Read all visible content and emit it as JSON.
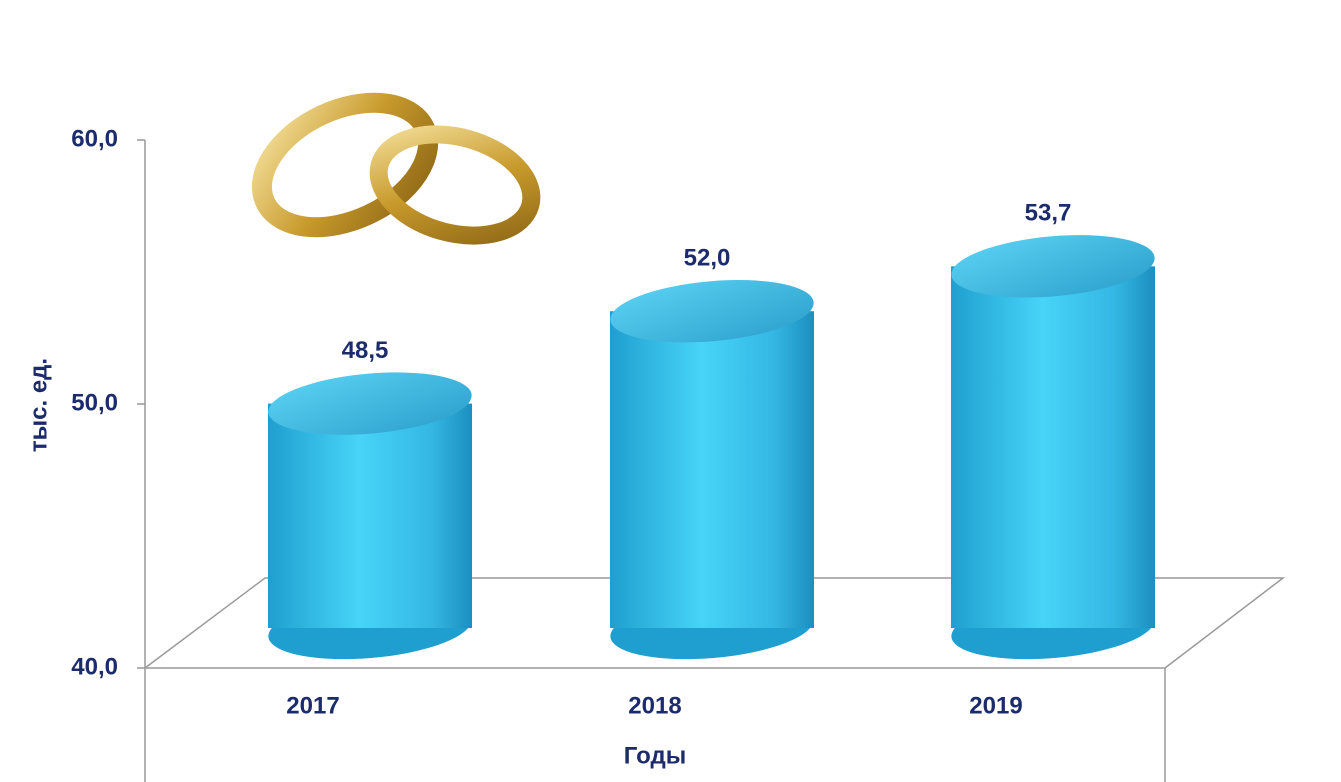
{
  "chart_data": {
    "type": "bar",
    "categories": [
      "2017",
      "2018",
      "2019"
    ],
    "values": [
      48.5,
      52.0,
      53.7
    ],
    "value_labels": [
      "48,5",
      "52,0",
      "53,7"
    ],
    "color": "#3ec6ee",
    "ylim": [
      40,
      60
    ],
    "yticks": [
      {
        "value": 40,
        "label": "40,0"
      },
      {
        "value": 50,
        "label": "50,0"
      },
      {
        "value": 60,
        "label": "60,0"
      }
    ],
    "x_label": "Годы",
    "y_label": "тыс. ед."
  }
}
